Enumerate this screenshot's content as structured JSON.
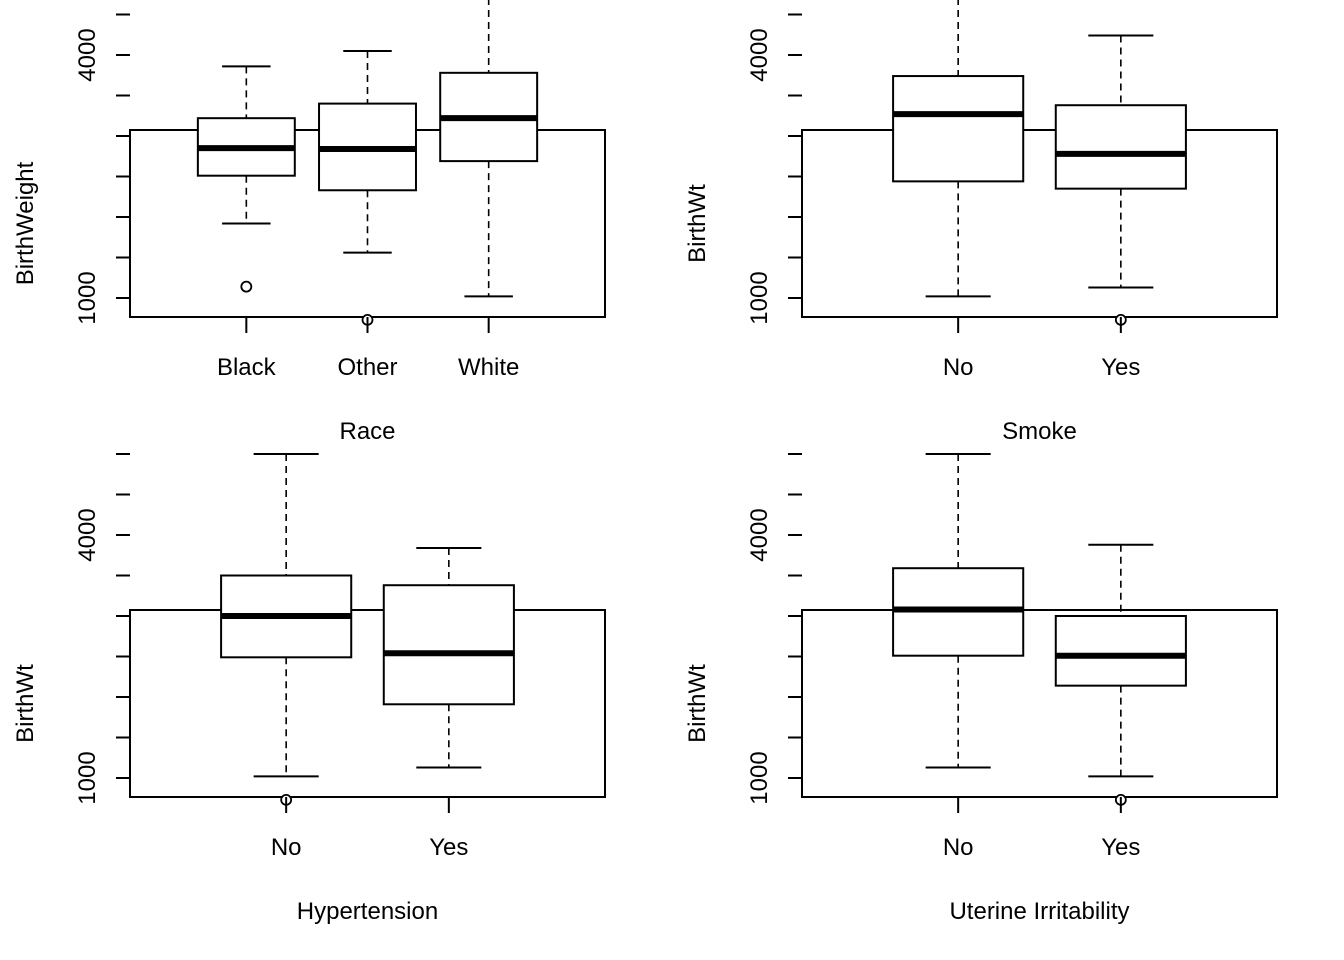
{
  "chart_data": [
    {
      "type": "boxplot",
      "xlabel": "Race",
      "ylabel": "BirthWeight",
      "yticks": [
        1000,
        4000
      ],
      "ylim": [
        730,
        5080
      ],
      "categories": [
        "Black",
        "Other",
        "White"
      ],
      "boxes": [
        {
          "whisker_low": 1920,
          "q1": 2510,
          "median": 2850,
          "q3": 3220,
          "whisker_high": 3860,
          "outliers": [
            1140
          ]
        },
        {
          "whisker_low": 1560,
          "q1": 2330,
          "median": 2840,
          "q3": 3400,
          "whisker_high": 4050,
          "outliers": [
            730
          ]
        },
        {
          "whisker_low": 1020,
          "q1": 2690,
          "median": 3220,
          "q3": 3780,
          "whisker_high": 5000,
          "outliers": []
        }
      ]
    },
    {
      "type": "boxplot",
      "xlabel": "Smoke",
      "ylabel": "BirthWt",
      "yticks": [
        1000,
        4000
      ],
      "ylim": [
        730,
        5080
      ],
      "categories": [
        "No",
        "Yes"
      ],
      "boxes": [
        {
          "whisker_low": 1020,
          "q1": 2440,
          "median": 3270,
          "q3": 3740,
          "whisker_high": 5000,
          "outliers": []
        },
        {
          "whisker_low": 1130,
          "q1": 2350,
          "median": 2780,
          "q3": 3380,
          "whisker_high": 4240,
          "outliers": [
            730
          ]
        }
      ]
    },
    {
      "type": "boxplot",
      "xlabel": "Hypertension",
      "ylabel": "BirthWt",
      "yticks": [
        1000,
        4000
      ],
      "ylim": [
        730,
        5080
      ],
      "categories": [
        "No",
        "Yes"
      ],
      "boxes": [
        {
          "whisker_low": 1020,
          "q1": 2490,
          "median": 3000,
          "q3": 3500,
          "whisker_high": 5000,
          "outliers": [
            730
          ]
        },
        {
          "whisker_low": 1130,
          "q1": 1910,
          "median": 2540,
          "q3": 3380,
          "whisker_high": 3840,
          "outliers": []
        }
      ]
    },
    {
      "type": "boxplot",
      "xlabel": "Uterine Irritability",
      "ylabel": "BirthWt",
      "yticks": [
        1000,
        4000
      ],
      "ylim": [
        730,
        5080
      ],
      "categories": [
        "No",
        "Yes"
      ],
      "boxes": [
        {
          "whisker_low": 1130,
          "q1": 2510,
          "median": 3080,
          "q3": 3590,
          "whisker_high": 5000,
          "outliers": []
        },
        {
          "whisker_low": 1020,
          "q1": 2140,
          "median": 2510,
          "q3": 3000,
          "whisker_high": 3880,
          "outliers": [
            730
          ]
        }
      ]
    }
  ]
}
